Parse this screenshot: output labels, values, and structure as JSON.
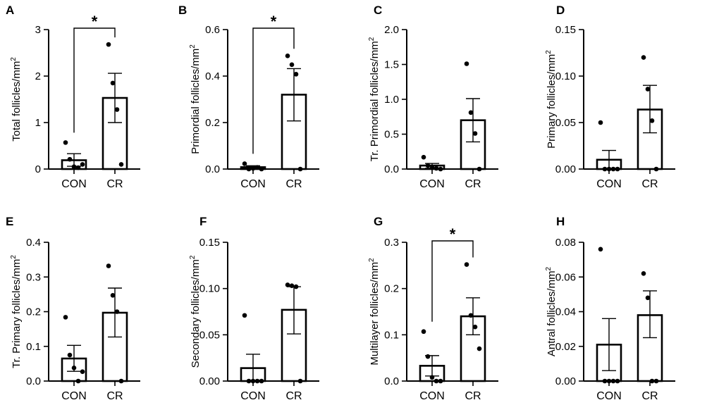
{
  "chart_data": [
    {
      "letter": "A",
      "type": "bar",
      "ylabel": "Total follicles/mm",
      "ylabel_superscript": "2",
      "categories": [
        "CON",
        "CR"
      ],
      "ylim": [
        0,
        3
      ],
      "yticks": [
        0,
        1,
        2,
        3
      ],
      "yticklabels": [
        "0",
        "1",
        "2",
        "3"
      ],
      "means": [
        0.19,
        1.53
      ],
      "errors": [
        [
          0.06,
          0.33
        ],
        [
          1.0,
          2.06
        ]
      ],
      "points": [
        [
          0.57,
          0.21,
          0.05,
          0.03,
          0.1
        ],
        [
          2.68,
          1.85,
          1.28,
          0.1
        ]
      ],
      "significance": "*"
    },
    {
      "letter": "B",
      "type": "bar",
      "ylabel": "Primordial follicles/mm",
      "ylabel_superscript": "2",
      "categories": [
        "CON",
        "CR"
      ],
      "ylim": [
        0,
        0.6
      ],
      "yticks": [
        0,
        0.2,
        0.4,
        0.6
      ],
      "yticklabels": [
        "0.0",
        "0.2",
        "0.4",
        "0.6"
      ],
      "means": [
        0.008,
        0.32
      ],
      "errors": [
        [
          0.001,
          0.014
        ],
        [
          0.207,
          0.432
        ]
      ],
      "points": [
        [
          0.023,
          0.0,
          0.003,
          0.007,
          0.0
        ],
        [
          0.487,
          0.449,
          0.408,
          0.0
        ]
      ],
      "significance": "*"
    },
    {
      "letter": "C",
      "type": "bar",
      "ylabel": "Tr. Primordial follicles/mm",
      "ylabel_superscript": "2",
      "categories": [
        "CON",
        "CR"
      ],
      "ylim": [
        0,
        2.0
      ],
      "yticks": [
        0,
        0.5,
        1.0,
        1.5,
        2.0
      ],
      "yticklabels": [
        "0.0",
        "0.5",
        "1.0",
        "1.5",
        "2.0"
      ],
      "means": [
        0.05,
        0.7
      ],
      "errors": [
        [
          0.01,
          0.08
        ],
        [
          0.39,
          1.01
        ]
      ],
      "points": [
        [
          0.17,
          0.05,
          0.02,
          0.01,
          0.0
        ],
        [
          1.51,
          0.81,
          0.51,
          0.0
        ]
      ],
      "significance": ""
    },
    {
      "letter": "D",
      "type": "bar",
      "ylabel": "Primary follicles/mm",
      "ylabel_superscript": "2",
      "categories": [
        "CON",
        "CR"
      ],
      "ylim": [
        0,
        0.15
      ],
      "yticks": [
        0,
        0.05,
        0.1,
        0.15
      ],
      "yticklabels": [
        "0.00",
        "0.05",
        "0.10",
        "0.15"
      ],
      "means": [
        0.01,
        0.064
      ],
      "errors": [
        [
          0.0,
          0.02
        ],
        [
          0.039,
          0.09
        ]
      ],
      "points": [
        [
          0.05,
          0.0,
          0.0,
          0.0,
          0.0
        ],
        [
          0.12,
          0.086,
          0.052,
          0.0
        ]
      ],
      "significance": ""
    },
    {
      "letter": "E",
      "type": "bar",
      "ylabel": "Tr. Primary follicles/mm",
      "ylabel_superscript": "2",
      "categories": [
        "CON",
        "CR"
      ],
      "ylim": [
        0,
        0.4
      ],
      "yticks": [
        0,
        0.1,
        0.2,
        0.3,
        0.4
      ],
      "yticklabels": [
        "0.0",
        "0.1",
        "0.2",
        "0.3",
        "0.4"
      ],
      "means": [
        0.065,
        0.197
      ],
      "errors": [
        [
          0.028,
          0.103
        ],
        [
          0.127,
          0.268
        ]
      ],
      "points": [
        [
          0.184,
          0.075,
          0.038,
          0.0,
          0.027
        ],
        [
          0.332,
          0.247,
          0.2,
          0.0
        ]
      ],
      "significance": ""
    },
    {
      "letter": "F",
      "type": "bar",
      "ylabel": "Secondary follicles/mm",
      "ylabel_superscript": "2",
      "categories": [
        "CON",
        "CR"
      ],
      "ylim": [
        0,
        0.15
      ],
      "yticks": [
        0,
        0.05,
        0.1,
        0.15
      ],
      "yticklabels": [
        "0.00",
        "0.05",
        "0.10",
        "0.15"
      ],
      "means": [
        0.014,
        0.077
      ],
      "errors": [
        [
          0.0,
          0.029
        ],
        [
          0.051,
          0.102
        ]
      ],
      "points": [
        [
          0.071,
          0.0,
          0.0,
          0.0,
          0.0
        ],
        [
          0.104,
          0.103,
          0.102,
          0.0
        ]
      ],
      "significance": ""
    },
    {
      "letter": "G",
      "type": "bar",
      "ylabel": "Multilayer follicles/mm",
      "ylabel_superscript": "2",
      "categories": [
        "CON",
        "CR"
      ],
      "ylim": [
        0,
        0.3
      ],
      "yticks": [
        0,
        0.1,
        0.2,
        0.3
      ],
      "yticklabels": [
        "0.0",
        "0.1",
        "0.2",
        "0.3"
      ],
      "means": [
        0.033,
        0.14
      ],
      "errors": [
        [
          0.011,
          0.055
        ],
        [
          0.1,
          0.18
        ]
      ],
      "points": [
        [
          0.107,
          0.053,
          0.008,
          0.0,
          0.0
        ],
        [
          0.252,
          0.142,
          0.117,
          0.07
        ]
      ],
      "significance": "*"
    },
    {
      "letter": "H",
      "type": "bar",
      "ylabel": "Antral follicles/mm",
      "ylabel_superscript": "2",
      "categories": [
        "CON",
        "CR"
      ],
      "ylim": [
        0,
        0.08
      ],
      "yticks": [
        0,
        0.02,
        0.04,
        0.06,
        0.08
      ],
      "yticklabels": [
        "0.00",
        "0.02",
        "0.04",
        "0.06",
        "0.08"
      ],
      "means": [
        0.021,
        0.038
      ],
      "errors": [
        [
          0.006,
          0.036
        ],
        [
          0.025,
          0.052
        ]
      ],
      "points": [
        [
          0.076,
          0.0,
          0.0,
          0.0,
          0.0
        ],
        [
          0.062,
          0.048,
          0.0,
          0.0
        ]
      ],
      "significance": ""
    }
  ]
}
